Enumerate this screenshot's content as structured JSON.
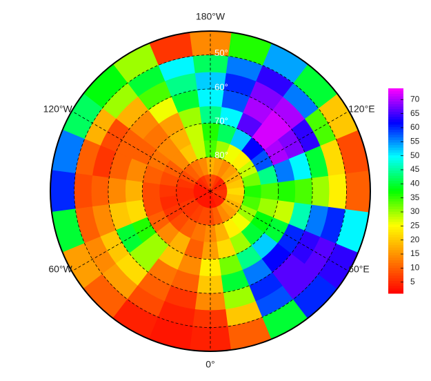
{
  "chart_data": {
    "type": "heatmap",
    "projection": "polar",
    "latlim": [
      43,
      90
    ],
    "lat_edges": [
      90,
      85,
      80,
      75,
      70,
      65,
      60,
      55,
      50,
      43
    ],
    "lon_start": -7.5,
    "lon_step": 15,
    "values": [
      [
        3,
        3,
        4,
        4,
        5,
        6,
        6,
        5,
        5,
        4,
        6,
        8,
        9,
        8,
        6,
        5,
        4,
        3,
        3,
        3,
        3,
        3,
        3,
        3
      ],
      [
        8,
        10,
        14,
        16,
        18,
        20,
        22,
        20,
        18,
        16,
        14,
        16,
        18,
        14,
        12,
        10,
        8,
        6,
        5,
        5,
        6,
        6,
        7,
        8
      ],
      [
        14,
        18,
        24,
        26,
        30,
        34,
        36,
        32,
        28,
        24,
        26,
        30,
        34,
        28,
        20,
        14,
        10,
        8,
        6,
        5,
        6,
        8,
        10,
        12
      ],
      [
        16,
        22,
        30,
        40,
        38,
        30,
        34,
        44,
        58,
        62,
        52,
        42,
        36,
        28,
        18,
        14,
        12,
        10,
        8,
        8,
        10,
        14,
        18,
        10
      ],
      [
        24,
        32,
        44,
        52,
        40,
        28,
        36,
        56,
        70,
        72,
        66,
        50,
        44,
        30,
        16,
        12,
        10,
        14,
        18,
        22,
        36,
        30,
        20,
        14
      ],
      [
        20,
        40,
        56,
        62,
        60,
        46,
        34,
        50,
        68,
        72,
        70,
        58,
        50,
        40,
        26,
        14,
        10,
        10,
        14,
        20,
        40,
        30,
        12,
        10
      ],
      [
        14,
        30,
        60,
        66,
        64,
        56,
        30,
        40,
        64,
        70,
        68,
        60,
        52,
        44,
        34,
        18,
        8,
        6,
        10,
        14,
        20,
        22,
        10,
        6
      ],
      [
        6,
        20,
        58,
        66,
        66,
        60,
        24,
        22,
        34,
        56,
        64,
        56,
        42,
        50,
        40,
        30,
        18,
        10,
        8,
        10,
        14,
        16,
        8,
        4
      ],
      [
        4,
        10,
        40,
        60,
        64,
        50,
        10,
        8,
        20,
        40,
        54,
        36,
        14,
        6,
        30,
        38,
        42,
        56,
        60,
        40,
        16,
        10,
        4,
        3
      ]
    ],
    "lat_ticks": [
      {
        "value": 50,
        "label": "50°"
      },
      {
        "value": 60,
        "label": "60°"
      },
      {
        "value": 70,
        "label": "70°"
      },
      {
        "value": 80,
        "label": "80°"
      }
    ],
    "lon_ticks": [
      {
        "value": 180,
        "label": "180°W"
      },
      {
        "value": 120,
        "label": "120°E"
      },
      {
        "value": 60,
        "label": "60°E"
      },
      {
        "value": 0,
        "label": "0°"
      },
      {
        "value": -60,
        "label": "60°W"
      },
      {
        "value": -120,
        "label": "120°W"
      }
    ],
    "colormap": [
      "#ff0000",
      "#ff8000",
      "#ffff00",
      "#00ff00",
      "#00ffff",
      "#0000ff",
      "#ff00ff"
    ],
    "clim": [
      1,
      74
    ],
    "cticks": [
      5,
      10,
      15,
      20,
      25,
      30,
      35,
      40,
      45,
      50,
      55,
      60,
      65,
      70
    ]
  }
}
